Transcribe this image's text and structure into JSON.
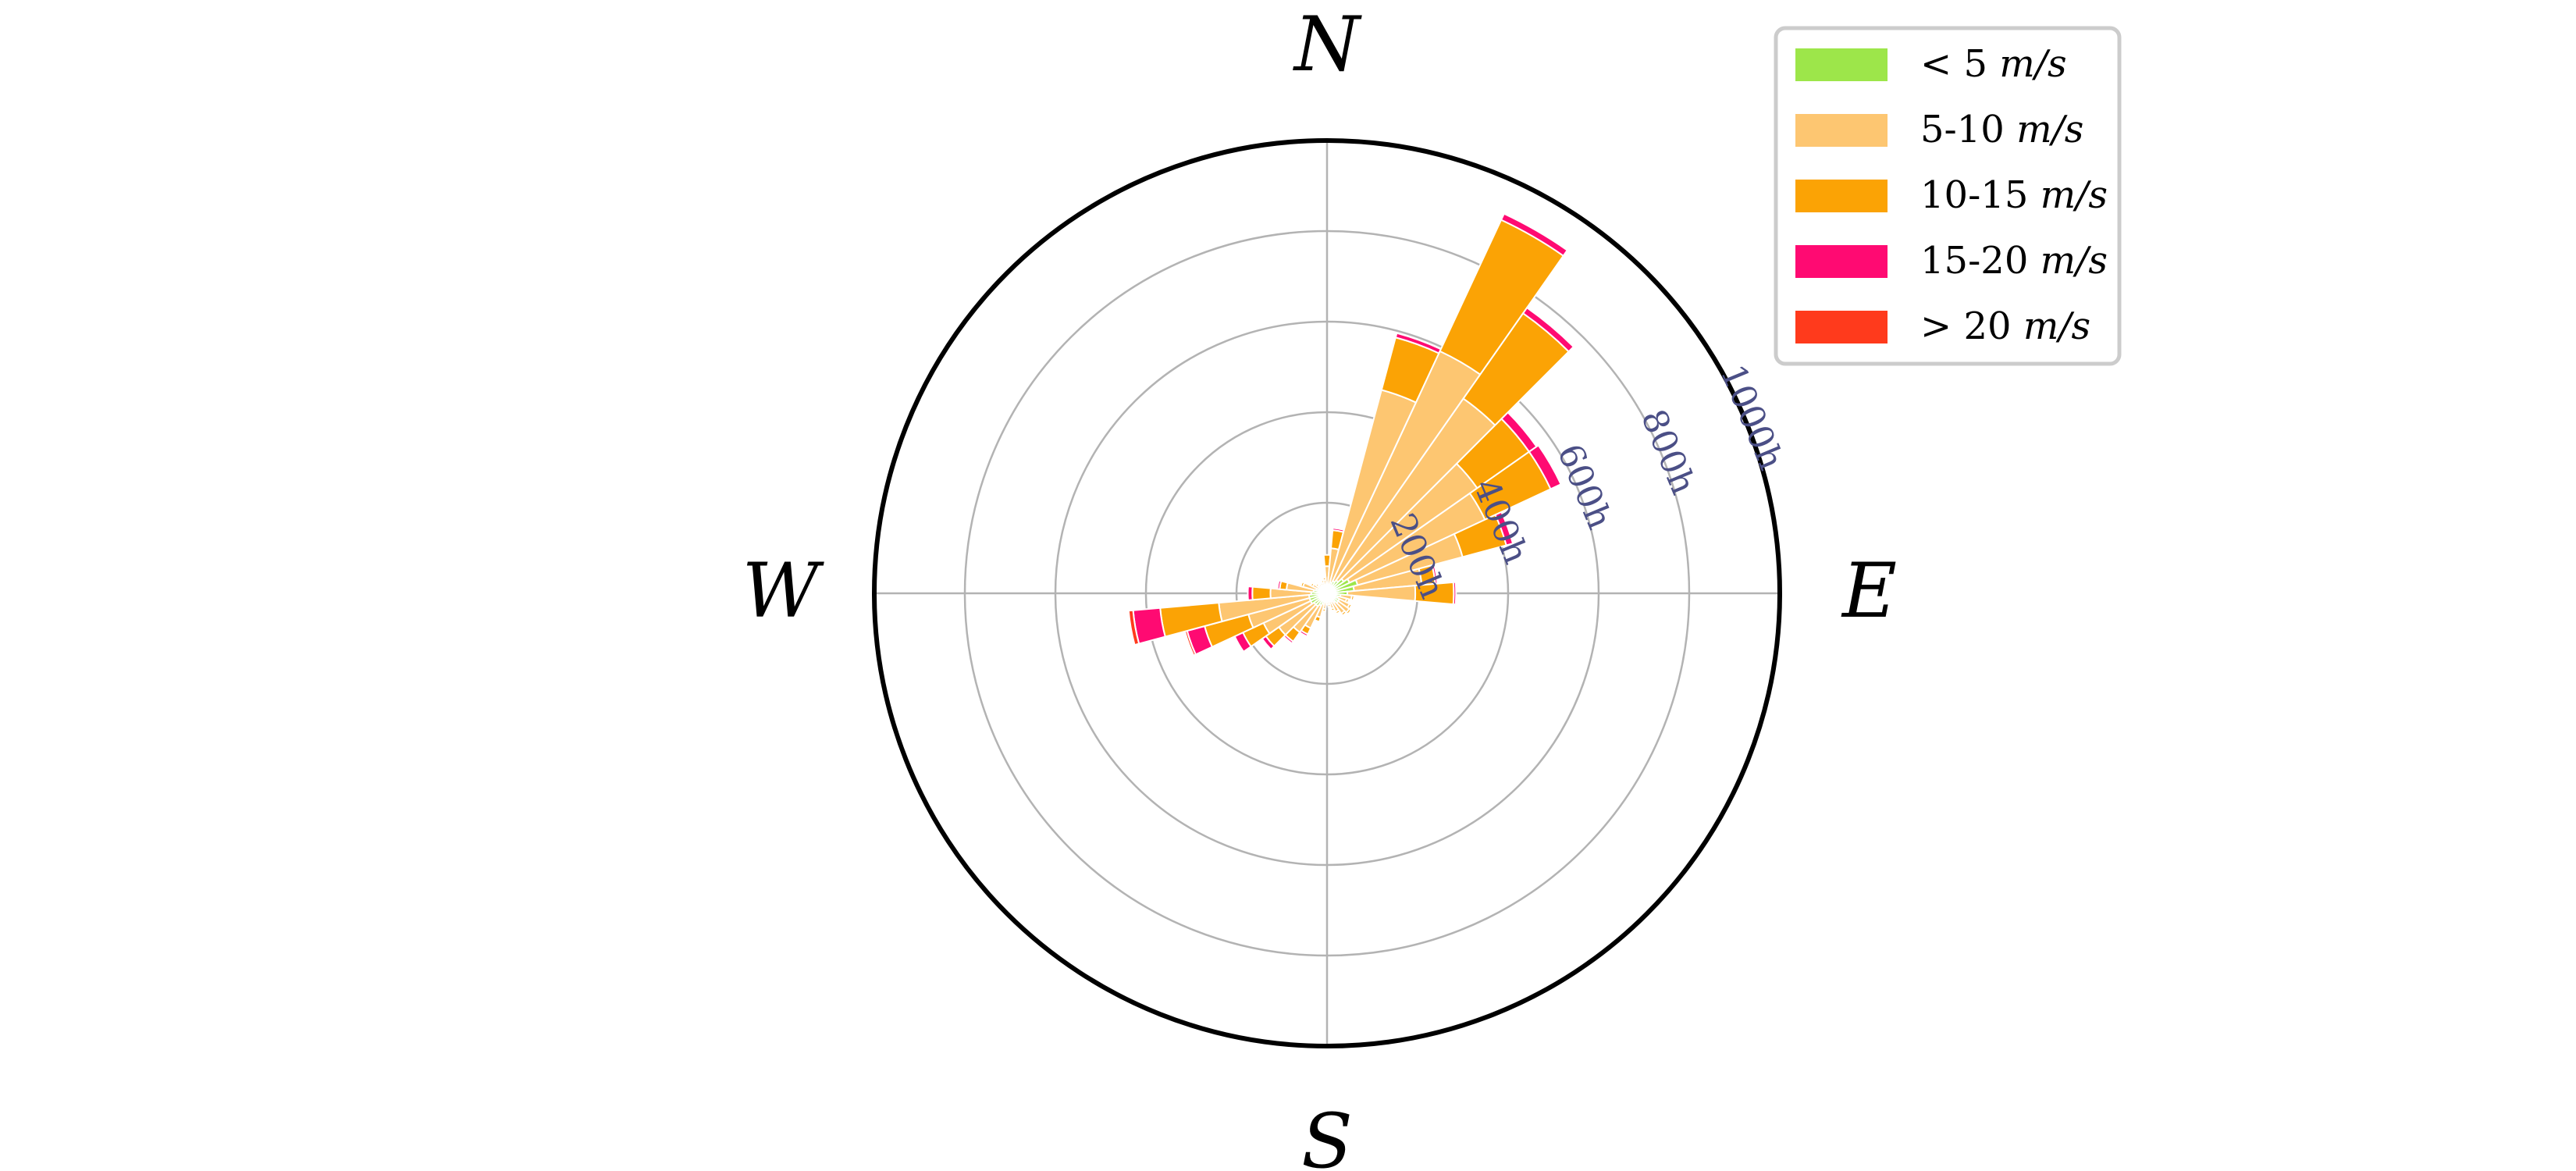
{
  "chart_data": {
    "type": "windrose",
    "radial_unit_suffix": "h",
    "rmax": 1000,
    "radial_ticks": [
      200,
      400,
      600,
      800,
      1000
    ],
    "radial_tick_labels": [
      "200h",
      "400h",
      "600h",
      "800h",
      "1000h"
    ],
    "directions": [
      "N",
      "E",
      "S",
      "W"
    ],
    "bin_width_deg": 10,
    "legend": {
      "placement": "top-right",
      "entries": [
        {
          "prefix": "< ",
          "range": "5",
          "unit": "m/s",
          "color": "#9de64a"
        },
        {
          "prefix": "",
          "range": "5-10",
          "unit": "m/s",
          "color": "#fdc671"
        },
        {
          "prefix": "",
          "range": "10-15",
          "unit": "m/s",
          "color": "#fba305"
        },
        {
          "prefix": "",
          "range": "15-20",
          "unit": "m/s",
          "color": "#ff0a72"
        },
        {
          "prefix": "> ",
          "range": "20",
          "unit": "m/s",
          "color": "#ff3a1c"
        }
      ]
    },
    "colors": {
      "lt5": "#9de64a",
      "5to10": "#fdc671",
      "10to15": "#fba305",
      "15to20": "#ff0a72",
      "gt20": "#ff3a1c",
      "grid": "#b3b3b3",
      "frame": "#000000"
    },
    "series_order": [
      "lt5",
      "5to10",
      "10to15",
      "15to20",
      "gt20"
    ],
    "sectors": [
      {
        "dir": 0,
        "values": [
          10,
          50,
          25,
          0,
          0
        ]
      },
      {
        "dir": 10,
        "values": [
          20,
          80,
          40,
          5,
          0
        ]
      },
      {
        "dir": 20,
        "values": [
          25,
          440,
          120,
          10,
          0
        ]
      },
      {
        "dir": 30,
        "values": [
          30,
          560,
          320,
          15,
          0
        ]
      },
      {
        "dir": 40,
        "values": [
          35,
          490,
          230,
          15,
          0
        ]
      },
      {
        "dir": 50,
        "values": [
          45,
          360,
          140,
          20,
          0
        ]
      },
      {
        "dir": 60,
        "values": [
          55,
          330,
          160,
          25,
          0
        ]
      },
      {
        "dir": 70,
        "values": [
          70,
          240,
          100,
          15,
          0
        ]
      },
      {
        "dir": 80,
        "values": [
          60,
          150,
          30,
          5,
          0
        ]
      },
      {
        "dir": 90,
        "values": [
          45,
          150,
          85,
          5,
          0
        ]
      },
      {
        "dir": 100,
        "values": [
          30,
          25,
          5,
          0,
          0
        ]
      },
      {
        "dir": 110,
        "values": [
          25,
          20,
          5,
          0,
          0
        ]
      },
      {
        "dir": 120,
        "values": [
          30,
          25,
          5,
          0,
          0
        ]
      },
      {
        "dir": 130,
        "values": [
          30,
          30,
          5,
          0,
          0
        ]
      },
      {
        "dir": 140,
        "values": [
          25,
          30,
          5,
          0,
          0
        ]
      },
      {
        "dir": 150,
        "values": [
          20,
          25,
          5,
          0,
          0
        ]
      },
      {
        "dir": 160,
        "values": [
          15,
          20,
          5,
          0,
          0
        ]
      },
      {
        "dir": 170,
        "values": [
          10,
          15,
          5,
          0,
          0
        ]
      },
      {
        "dir": 180,
        "values": [
          10,
          10,
          5,
          0,
          0
        ]
      },
      {
        "dir": 190,
        "values": [
          15,
          20,
          5,
          0,
          0
        ]
      },
      {
        "dir": 200,
        "values": [
          25,
          30,
          10,
          0,
          0
        ]
      },
      {
        "dir": 210,
        "values": [
          30,
          55,
          15,
          5,
          0
        ]
      },
      {
        "dir": 220,
        "values": [
          35,
          70,
          25,
          5,
          0
        ]
      },
      {
        "dir": 230,
        "values": [
          35,
          95,
          35,
          10,
          0
        ]
      },
      {
        "dir": 240,
        "values": [
          40,
          115,
          50,
          20,
          0
        ]
      },
      {
        "dir": 250,
        "values": [
          40,
          140,
          100,
          40,
          5
        ]
      },
      {
        "dir": 260,
        "values": [
          40,
          200,
          130,
          60,
          10
        ]
      },
      {
        "dir": 270,
        "values": [
          35,
          90,
          40,
          10,
          0
        ]
      },
      {
        "dir": 280,
        "values": [
          30,
          60,
          15,
          5,
          0
        ]
      },
      {
        "dir": 290,
        "values": [
          25,
          30,
          5,
          0,
          0
        ]
      },
      {
        "dir": 300,
        "values": [
          15,
          20,
          5,
          0,
          0
        ]
      },
      {
        "dir": 310,
        "values": [
          10,
          15,
          5,
          0,
          0
        ]
      },
      {
        "dir": 320,
        "values": [
          10,
          10,
          5,
          0,
          0
        ]
      },
      {
        "dir": 330,
        "values": [
          10,
          10,
          5,
          0,
          0
        ]
      },
      {
        "dir": 340,
        "values": [
          10,
          15,
          5,
          0,
          0
        ]
      },
      {
        "dir": 350,
        "values": [
          10,
          20,
          5,
          0,
          0
        ]
      }
    ]
  }
}
